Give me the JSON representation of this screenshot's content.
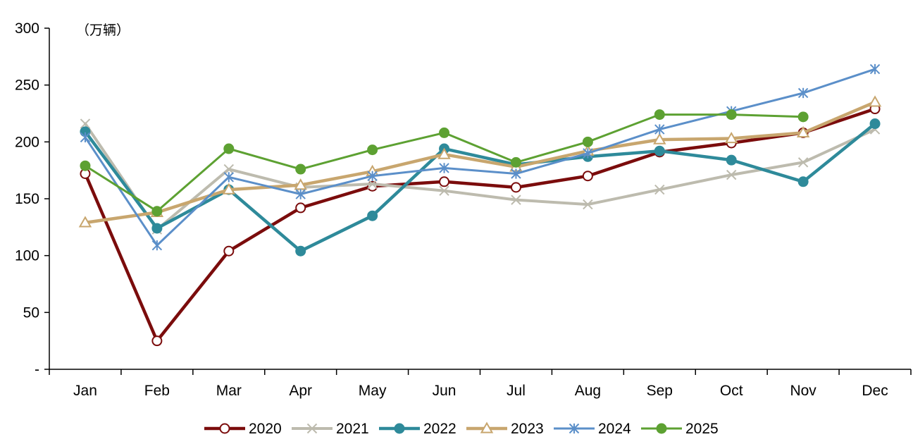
{
  "chart_data": {
    "type": "line",
    "title": "",
    "unit_label": "（万辆）",
    "xlabel": "",
    "ylabel": "",
    "categories": [
      "Jan",
      "Feb",
      "Mar",
      "Apr",
      "May",
      "Jun",
      "Jul",
      "Aug",
      "Sep",
      "Oct",
      "Nov",
      "Dec"
    ],
    "ylim": [
      0,
      300
    ],
    "yticks": [
      0,
      50,
      100,
      150,
      200,
      250,
      300
    ],
    "ytick_labels": [
      "-",
      "50",
      "100",
      "150",
      "200",
      "250",
      "300"
    ],
    "grid": false,
    "legend_position": "bottom",
    "series": [
      {
        "name": "2020",
        "color": "#7B0C0C",
        "marker": "circle-open",
        "values": [
          172,
          25,
          104,
          142,
          161,
          165,
          160,
          170,
          191,
          199,
          208,
          229
        ]
      },
      {
        "name": "2021",
        "color": "#BDBBAE",
        "marker": "x",
        "values": [
          216,
          123,
          176,
          160,
          163,
          157,
          149,
          145,
          158,
          171,
          182,
          211
        ]
      },
      {
        "name": "2022",
        "color": "#2E8A9A",
        "marker": "circle-filled",
        "values": [
          209,
          124,
          158,
          104,
          135,
          194,
          180,
          187,
          192,
          184,
          165,
          216
        ]
      },
      {
        "name": "2023",
        "color": "#C8A66E",
        "marker": "triangle-open",
        "values": [
          129,
          138,
          158,
          162,
          174,
          189,
          178,
          192,
          202,
          203,
          208,
          235
        ]
      },
      {
        "name": "2024",
        "color": "#5B8FC9",
        "marker": "asterisk",
        "values": [
          204,
          109,
          169,
          154,
          170,
          177,
          172,
          190,
          211,
          227,
          243,
          264
        ]
      },
      {
        "name": "2025",
        "color": "#5DA132",
        "marker": "circle-filled",
        "values": [
          179,
          139,
          194,
          176,
          193,
          208,
          182,
          200,
          224,
          224,
          222,
          null
        ]
      }
    ]
  }
}
